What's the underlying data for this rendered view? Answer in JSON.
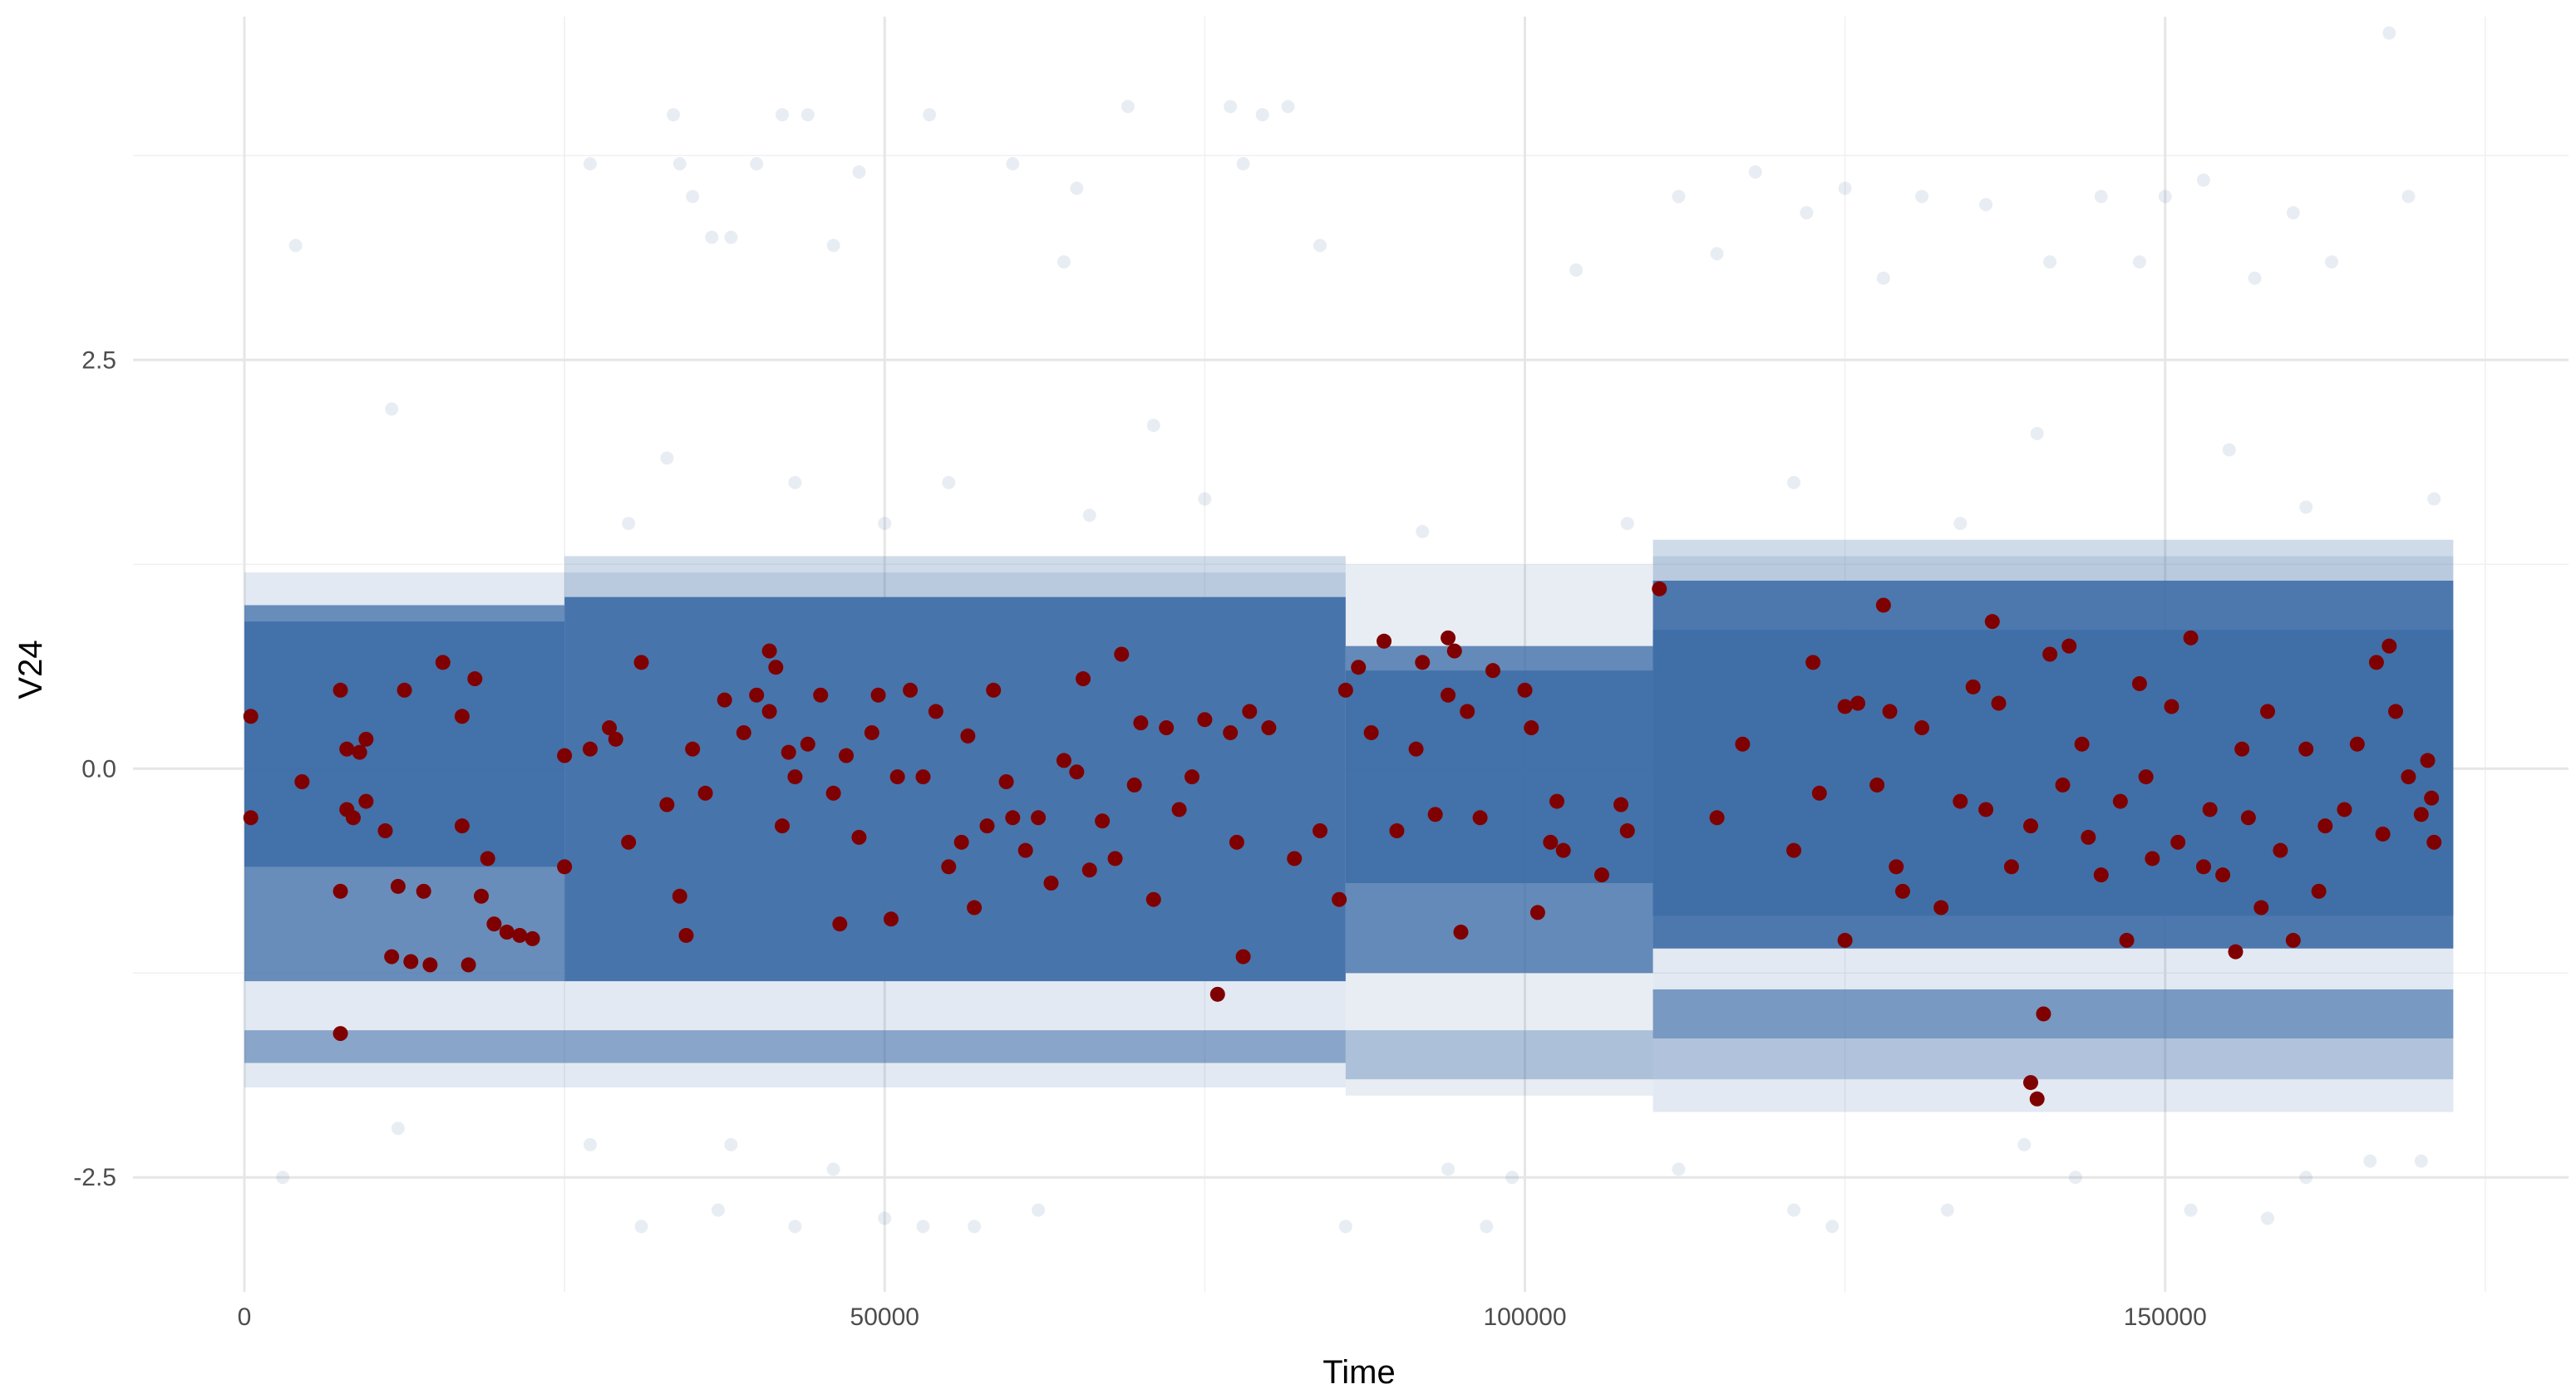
{
  "chart_data": {
    "type": "scatter",
    "title": "",
    "xlabel": "Time",
    "ylabel": "V24",
    "xlim": [
      -8700,
      181500
    ],
    "ylim": [
      -3.2,
      4.6
    ],
    "x_ticks": [
      0,
      50000,
      100000,
      150000
    ],
    "x_tick_labels": [
      "0",
      "50000",
      "100000",
      "150000"
    ],
    "y_ticks": [
      -2.5,
      0.0,
      2.5
    ],
    "y_tick_labels": [
      "-2.5",
      "0.0",
      "2.5"
    ],
    "grid": true,
    "legend": "none",
    "colors": {
      "background": "#ffffff",
      "grid_major": "#e6e6e6",
      "grid_minor": "#f0f0f0",
      "normal": "#3f6ea8",
      "fraud": "#7f0000"
    },
    "series": [
      {
        "class": "0",
        "color": "#3f6ea8",
        "opacity": 0.12,
        "points": [
          [
            4000,
            3.2
          ],
          [
            11500,
            2.2
          ],
          [
            27000,
            3.7
          ],
          [
            33500,
            4.0
          ],
          [
            34000,
            3.7
          ],
          [
            35000,
            3.5
          ],
          [
            36500,
            3.25
          ],
          [
            38000,
            3.25
          ],
          [
            40000,
            3.7
          ],
          [
            42000,
            4.0
          ],
          [
            44000,
            4.0
          ],
          [
            48000,
            3.65
          ],
          [
            53500,
            4.0
          ],
          [
            60000,
            3.7
          ],
          [
            65000,
            3.55
          ],
          [
            69000,
            4.05
          ],
          [
            77000,
            4.05
          ],
          [
            78000,
            3.7
          ],
          [
            79500,
            4.0
          ],
          [
            81500,
            4.05
          ],
          [
            84000,
            3.2
          ],
          [
            64000,
            3.1
          ],
          [
            46000,
            3.2
          ],
          [
            112000,
            3.5
          ],
          [
            118000,
            3.65
          ],
          [
            122000,
            3.4
          ],
          [
            125000,
            3.55
          ],
          [
            128000,
            3.0
          ],
          [
            131000,
            3.5
          ],
          [
            136000,
            3.45
          ],
          [
            141000,
            3.1
          ],
          [
            145000,
            3.5
          ],
          [
            150000,
            3.5
          ],
          [
            153000,
            3.6
          ],
          [
            157000,
            3.0
          ],
          [
            160000,
            3.4
          ],
          [
            163000,
            3.1
          ],
          [
            167500,
            4.5
          ],
          [
            169000,
            3.5
          ],
          [
            104000,
            3.05
          ],
          [
            115000,
            3.15
          ],
          [
            148000,
            3.1
          ],
          [
            33000,
            1.9
          ],
          [
            43000,
            1.75
          ],
          [
            55000,
            1.75
          ],
          [
            71000,
            2.1
          ],
          [
            75000,
            1.65
          ],
          [
            121000,
            1.75
          ],
          [
            140000,
            2.05
          ],
          [
            155000,
            1.95
          ],
          [
            161000,
            1.6
          ],
          [
            171000,
            1.65
          ],
          [
            30000,
            1.5
          ],
          [
            50000,
            1.5
          ],
          [
            66000,
            1.55
          ],
          [
            92000,
            1.45
          ],
          [
            108000,
            1.5
          ],
          [
            134000,
            1.5
          ],
          [
            3000,
            -2.5
          ],
          [
            12000,
            -2.2
          ],
          [
            31000,
            -2.8
          ],
          [
            37000,
            -2.7
          ],
          [
            43000,
            -2.8
          ],
          [
            50000,
            -2.75
          ],
          [
            53000,
            -2.8
          ],
          [
            57000,
            -2.8
          ],
          [
            62000,
            -2.7
          ],
          [
            86000,
            -2.8
          ],
          [
            97000,
            -2.8
          ],
          [
            99000,
            -2.5
          ],
          [
            121000,
            -2.7
          ],
          [
            124000,
            -2.8
          ],
          [
            133000,
            -2.7
          ],
          [
            139000,
            -2.3
          ],
          [
            143000,
            -2.5
          ],
          [
            152000,
            -2.7
          ],
          [
            158000,
            -2.75
          ],
          [
            161000,
            -2.5
          ],
          [
            166000,
            -2.4
          ],
          [
            170000,
            -2.4
          ],
          [
            46000,
            -2.45
          ],
          [
            38000,
            -2.3
          ],
          [
            27000,
            -2.3
          ],
          [
            94000,
            -2.45
          ],
          [
            112000,
            -2.45
          ]
        ]
      },
      {
        "class": "1",
        "color": "#7f0000",
        "opacity": 1,
        "points": [
          [
            500,
            0.32
          ],
          [
            500,
            -0.3
          ],
          [
            4500,
            -0.08
          ],
          [
            7500,
            0.48
          ],
          [
            7500,
            -0.75
          ],
          [
            7500,
            -1.62
          ],
          [
            8000,
            0.12
          ],
          [
            8000,
            -0.25
          ],
          [
            8500,
            -0.3
          ],
          [
            9000,
            0.1
          ],
          [
            9500,
            -0.2
          ],
          [
            9500,
            0.18
          ],
          [
            11000,
            -0.38
          ],
          [
            11500,
            -1.15
          ],
          [
            12000,
            -0.72
          ],
          [
            12500,
            0.48
          ],
          [
            13000,
            -1.18
          ],
          [
            14000,
            -0.75
          ],
          [
            14500,
            -1.2
          ],
          [
            15500,
            0.65
          ],
          [
            17000,
            0.32
          ],
          [
            17000,
            -0.35
          ],
          [
            17500,
            -1.2
          ],
          [
            18000,
            0.55
          ],
          [
            18500,
            -0.78
          ],
          [
            19000,
            -0.55
          ],
          [
            19500,
            -0.95
          ],
          [
            20500,
            -1.0
          ],
          [
            21500,
            -1.02
          ],
          [
            22500,
            -1.04
          ],
          [
            25000,
            0.08
          ],
          [
            25000,
            -0.6
          ],
          [
            27000,
            0.12
          ],
          [
            28500,
            0.25
          ],
          [
            29000,
            0.18
          ],
          [
            30000,
            -0.45
          ],
          [
            31000,
            0.65
          ],
          [
            33000,
            -0.22
          ],
          [
            34000,
            -0.78
          ],
          [
            34500,
            -1.02
          ],
          [
            35000,
            0.12
          ],
          [
            36000,
            -0.15
          ],
          [
            37500,
            0.42
          ],
          [
            39000,
            0.22
          ],
          [
            40000,
            0.45
          ],
          [
            41000,
            0.72
          ],
          [
            41000,
            0.35
          ],
          [
            41500,
            0.62
          ],
          [
            42000,
            -0.35
          ],
          [
            42500,
            0.1
          ],
          [
            43000,
            -0.05
          ],
          [
            44000,
            0.15
          ],
          [
            45000,
            0.45
          ],
          [
            46000,
            -0.15
          ],
          [
            46500,
            -0.95
          ],
          [
            47000,
            0.08
          ],
          [
            48000,
            -0.42
          ],
          [
            49000,
            0.22
          ],
          [
            49500,
            0.45
          ],
          [
            50500,
            -0.92
          ],
          [
            51000,
            -0.05
          ],
          [
            52000,
            0.48
          ],
          [
            53000,
            -0.05
          ],
          [
            54000,
            0.35
          ],
          [
            55000,
            -0.6
          ],
          [
            56000,
            -0.45
          ],
          [
            56500,
            0.2
          ],
          [
            57000,
            -0.85
          ],
          [
            58000,
            -0.35
          ],
          [
            58500,
            0.48
          ],
          [
            59500,
            -0.08
          ],
          [
            60000,
            -0.3
          ],
          [
            61000,
            -0.5
          ],
          [
            62000,
            -0.3
          ],
          [
            63000,
            -0.7
          ],
          [
            64000,
            0.05
          ],
          [
            65000,
            -0.02
          ],
          [
            65500,
            0.55
          ],
          [
            66000,
            -0.62
          ],
          [
            67000,
            -0.32
          ],
          [
            68000,
            -0.55
          ],
          [
            68500,
            0.7
          ],
          [
            69500,
            -0.1
          ],
          [
            70000,
            0.28
          ],
          [
            71000,
            -0.8
          ],
          [
            72000,
            0.25
          ],
          [
            73000,
            -0.25
          ],
          [
            74000,
            -0.05
          ],
          [
            75000,
            0.3
          ],
          [
            76000,
            -1.38
          ],
          [
            77000,
            0.22
          ],
          [
            77500,
            -0.45
          ],
          [
            78000,
            -1.15
          ],
          [
            78500,
            0.35
          ],
          [
            80000,
            0.25
          ],
          [
            82000,
            -0.55
          ],
          [
            84000,
            -0.38
          ],
          [
            85500,
            -0.8
          ],
          [
            86000,
            0.48
          ],
          [
            87000,
            0.62
          ],
          [
            88000,
            0.22
          ],
          [
            89000,
            0.78
          ],
          [
            90000,
            -0.38
          ],
          [
            91500,
            0.12
          ],
          [
            92000,
            0.65
          ],
          [
            93000,
            -0.28
          ],
          [
            94000,
            0.8
          ],
          [
            94000,
            0.45
          ],
          [
            94500,
            0.72
          ],
          [
            95000,
            -1.0
          ],
          [
            95500,
            0.35
          ],
          [
            96500,
            -0.3
          ],
          [
            97500,
            0.6
          ],
          [
            100000,
            0.48
          ],
          [
            100500,
            0.25
          ],
          [
            101000,
            -0.88
          ],
          [
            102000,
            -0.45
          ],
          [
            102500,
            -0.2
          ],
          [
            103000,
            -0.5
          ],
          [
            106000,
            -0.65
          ],
          [
            107500,
            -0.22
          ],
          [
            108000,
            -0.38
          ],
          [
            110500,
            1.1
          ],
          [
            115000,
            -0.3
          ],
          [
            117000,
            0.15
          ],
          [
            121000,
            -0.5
          ],
          [
            122500,
            0.65
          ],
          [
            123000,
            -0.15
          ],
          [
            125000,
            0.38
          ],
          [
            125000,
            -1.05
          ],
          [
            126000,
            0.4
          ],
          [
            127500,
            -0.1
          ],
          [
            128000,
            1.0
          ],
          [
            128500,
            0.35
          ],
          [
            129000,
            -0.6
          ],
          [
            129500,
            -0.75
          ],
          [
            131000,
            0.25
          ],
          [
            132500,
            -0.85
          ],
          [
            134000,
            -0.2
          ],
          [
            135000,
            0.5
          ],
          [
            136000,
            -0.25
          ],
          [
            136500,
            0.9
          ],
          [
            137000,
            0.4
          ],
          [
            138000,
            -0.6
          ],
          [
            139500,
            -0.35
          ],
          [
            139500,
            -1.92
          ],
          [
            140000,
            -2.02
          ],
          [
            140500,
            -1.5
          ],
          [
            141000,
            0.7
          ],
          [
            142000,
            -0.1
          ],
          [
            142500,
            0.75
          ],
          [
            143500,
            0.15
          ],
          [
            144000,
            -0.42
          ],
          [
            145000,
            -0.65
          ],
          [
            146500,
            -0.2
          ],
          [
            147000,
            -1.05
          ],
          [
            148000,
            0.52
          ],
          [
            148500,
            -0.05
          ],
          [
            149000,
            -0.55
          ],
          [
            150500,
            0.38
          ],
          [
            151000,
            -0.45
          ],
          [
            152000,
            0.8
          ],
          [
            153000,
            -0.6
          ],
          [
            153500,
            -0.25
          ],
          [
            154500,
            -0.65
          ],
          [
            155500,
            -1.12
          ],
          [
            156000,
            0.12
          ],
          [
            156500,
            -0.3
          ],
          [
            157500,
            -0.85
          ],
          [
            158000,
            0.35
          ],
          [
            159000,
            -0.5
          ],
          [
            160000,
            -1.05
          ],
          [
            161000,
            0.12
          ],
          [
            162000,
            -0.75
          ],
          [
            162500,
            -0.35
          ],
          [
            164000,
            -0.25
          ],
          [
            165000,
            0.15
          ],
          [
            166500,
            0.65
          ],
          [
            167000,
            -0.4
          ],
          [
            167500,
            0.75
          ],
          [
            168000,
            0.35
          ],
          [
            169000,
            -0.05
          ],
          [
            170000,
            -0.28
          ],
          [
            171000,
            -0.45
          ],
          [
            170500,
            0.05
          ],
          [
            170800,
            -0.18
          ]
        ]
      }
    ]
  }
}
